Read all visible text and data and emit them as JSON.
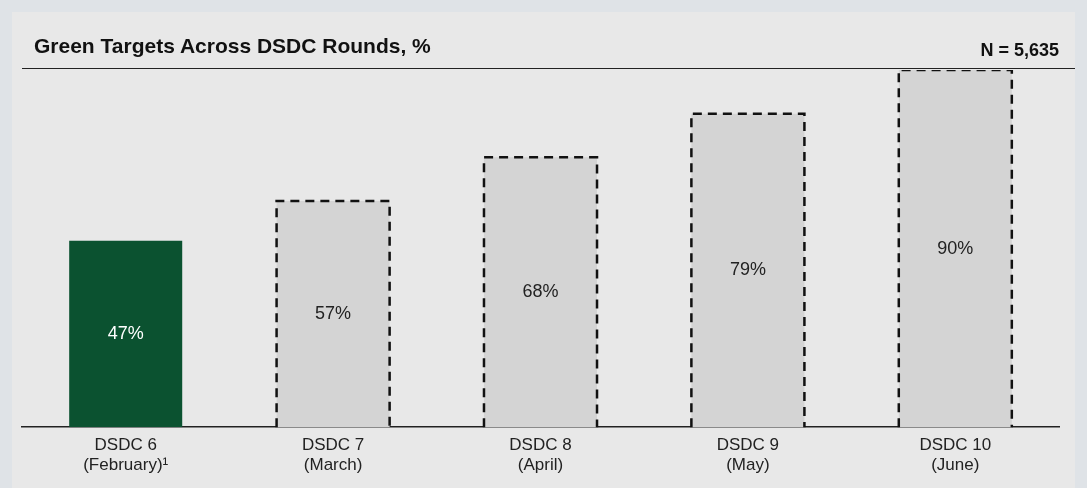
{
  "chart_data": {
    "type": "bar",
    "title": "Green Targets Across DSDC Rounds, %",
    "categories": [
      "DSDC 6\n(February)¹",
      "DSDC 7\n(March)",
      "DSDC 8\n(April)",
      "DSDC 9\n(May)",
      "DSDC 10\n(June)"
    ],
    "values": [
      47,
      57,
      68,
      79,
      90
    ],
    "colors": [
      "#0b5230",
      "#d4d4d4",
      "#d4d4d4",
      "#d4d4d4",
      "#d4d4d4"
    ],
    "value_labels": [
      "47%",
      "57%",
      "68%",
      "79%",
      "90%"
    ],
    "grid": false,
    "legend": false,
    "annotations": [
      "N = 5,635"
    ]
  }
}
